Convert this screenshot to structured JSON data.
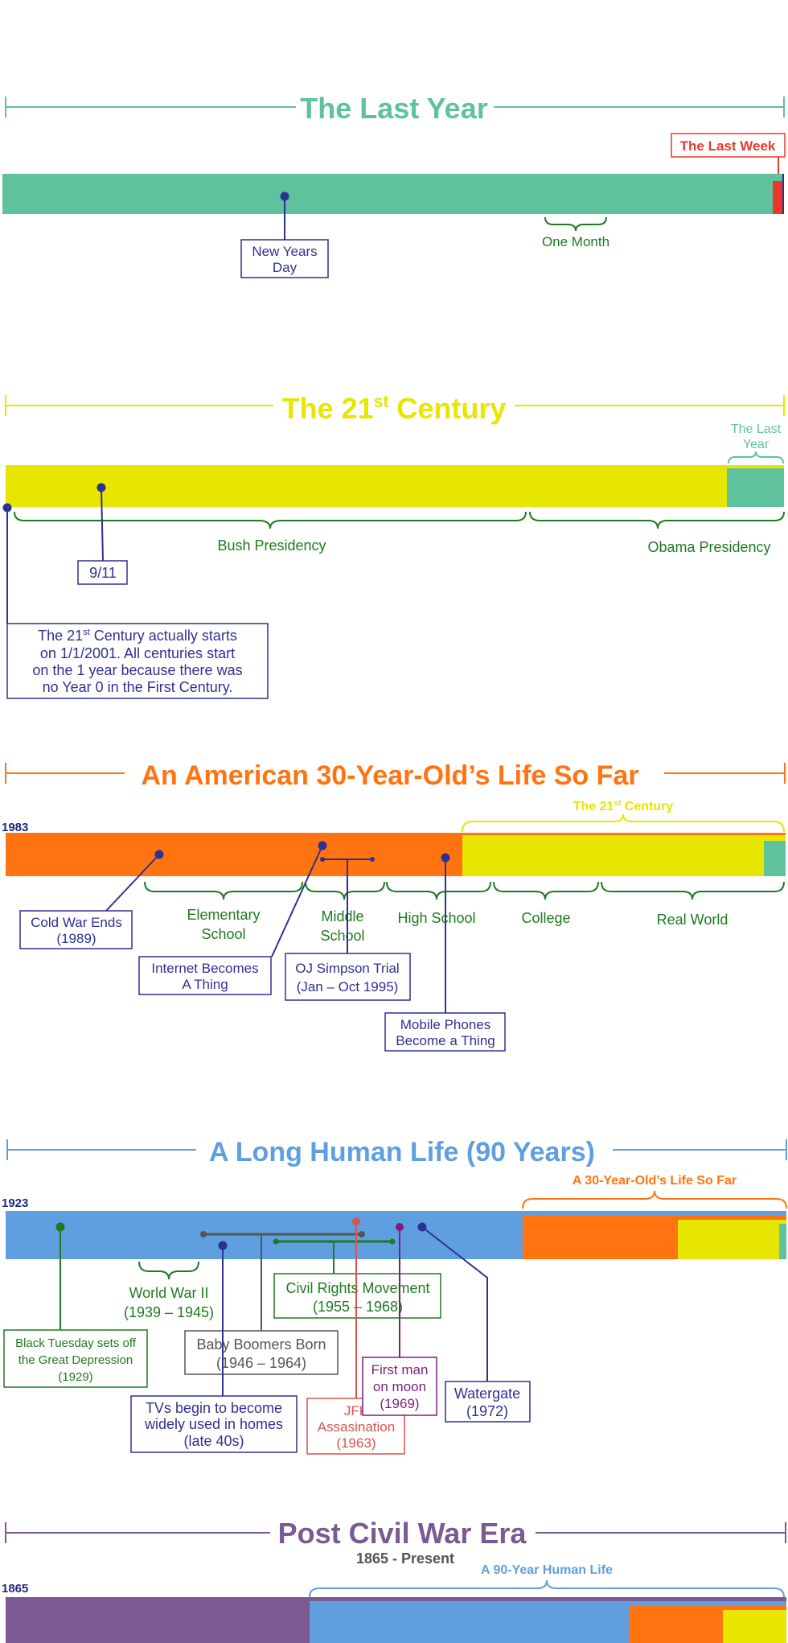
{
  "colors": {
    "teal": "#5ec29c",
    "red": "#e8392b",
    "navy": "#2e3192",
    "yellow": "#e6e600",
    "green": "#1e7b1e",
    "orange": "#ff7410",
    "blue": "#5f9fe0",
    "purple": "#7a5a91",
    "gray": "#555555",
    "darkred": "#d9534f",
    "magenta": "#7b1f7b",
    "darkblue": "#1f2a80"
  },
  "sections": {
    "last_year": {
      "title": "The Last Year",
      "last_week": "The Last Week",
      "new_years_1": "New Years",
      "new_years_2": "Day",
      "one_month": "One Month"
    },
    "century": {
      "title_main": "The 21",
      "title_sup": "st",
      "title_tail": " Century",
      "last_year_1": "The Last",
      "last_year_2": "Year",
      "bush": "Bush Presidency",
      "obama": "Obama Presidency",
      "nine_eleven": "9/11",
      "note_1a": "The 21",
      "note_1sup": "st",
      "note_1b": " Century actually starts",
      "note_2": "on 1/1/2001. All centuries start",
      "note_3": "on the 1 year because there was",
      "note_4": "no Year 0 in the First Century."
    },
    "thirty": {
      "title": "An American 30-Year-Old’s Life So Far",
      "start_year": "1983",
      "century_a": "The 21",
      "century_sup": "st",
      "century_b": " Century",
      "elementary_1": "Elementary",
      "elementary_2": "School",
      "middle_1": "Middle",
      "middle_2": "School",
      "high": "High School",
      "college": "College",
      "real_world": "Real World",
      "cold_war_1": "Cold War Ends",
      "cold_war_2": "(1989)",
      "internet_1": "Internet Becomes",
      "internet_2": "A Thing",
      "oj_1": "OJ Simpson Trial",
      "oj_2": "(Jan – Oct 1995)",
      "mobile_1": "Mobile Phones",
      "mobile_2": "Become a Thing"
    },
    "ninety": {
      "title": "A Long Human Life (90 Years)",
      "start_year": "1923",
      "thirty_label": "A 30-Year-Old’s Life So Far",
      "ww2_1": "World War II",
      "ww2_2": "(1939 – 1945)",
      "civil_1": "Civil Rights Movement",
      "civil_2": "(1955 – 1968)",
      "tuesday_1": "Black Tuesday sets off",
      "tuesday_2": "the Great Depression",
      "tuesday_3": "(1929)",
      "boomers_1": "Baby Boomers Born",
      "boomers_2": "(1946 – 1964)",
      "moon_1": "First man",
      "moon_2": "on moon",
      "moon_3": "(1969)",
      "watergate_1": "Watergate",
      "watergate_2": "(1972)",
      "tv_1": "TVs begin to become",
      "tv_2": "widely used in homes",
      "tv_3": "(late 40s)",
      "jfk_1": "JFK",
      "jfk_2": "Assasination",
      "jfk_3": "(1963)"
    },
    "civil_war": {
      "title": "Post Civil War Era",
      "subtitle": "1865 - Present",
      "ninety_label": "A 90-Year Human Life",
      "start_year": "1865"
    }
  }
}
